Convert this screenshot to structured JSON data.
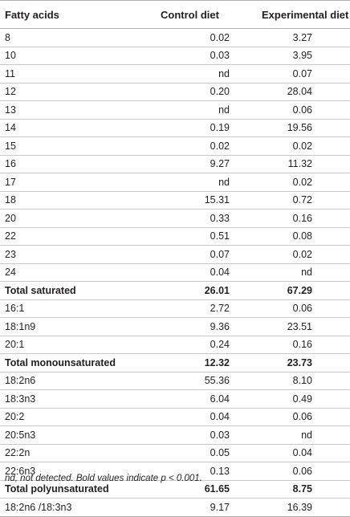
{
  "table": {
    "headers": [
      "Fatty acids",
      "Control diet",
      "Experimental diet"
    ],
    "rows": [
      {
        "label": "8",
        "control": "0.02",
        "experimental": "3.27",
        "bold": false
      },
      {
        "label": "10",
        "control": "0.03",
        "experimental": "3.95",
        "bold": false
      },
      {
        "label": "11",
        "control": "nd",
        "experimental": "0.07",
        "bold": false
      },
      {
        "label": "12",
        "control": "0.20",
        "experimental": "28.04",
        "bold": false
      },
      {
        "label": "13",
        "control": "nd",
        "experimental": "0.06",
        "bold": false
      },
      {
        "label": "14",
        "control": "0.19",
        "experimental": "19.56",
        "bold": false
      },
      {
        "label": "15",
        "control": "0.02",
        "experimental": "0.02",
        "bold": false
      },
      {
        "label": "16",
        "control": "9.27",
        "experimental": "11.32",
        "bold": false
      },
      {
        "label": "17",
        "control": "nd",
        "experimental": "0.02",
        "bold": false
      },
      {
        "label": "18",
        "control": "15.31",
        "experimental": "0.72",
        "bold": false
      },
      {
        "label": "20",
        "control": "0.33",
        "experimental": "0.16",
        "bold": false
      },
      {
        "label": "22",
        "control": "0.51",
        "experimental": "0.08",
        "bold": false
      },
      {
        "label": "23",
        "control": "0.07",
        "experimental": "0.02",
        "bold": false
      },
      {
        "label": "24",
        "control": "0.04",
        "experimental": "nd",
        "bold": false
      },
      {
        "label": "Total saturated",
        "control": "26.01",
        "experimental": "67.29",
        "bold": true
      },
      {
        "label": "16:1",
        "control": "2.72",
        "experimental": "0.06",
        "bold": false
      },
      {
        "label": "18:1n9",
        "control": "9.36",
        "experimental": "23.51",
        "bold": false
      },
      {
        "label": "20:1",
        "control": "0.24",
        "experimental": "0.16",
        "bold": false
      },
      {
        "label": "Total monounsaturated",
        "control": "12.32",
        "experimental": "23.73",
        "bold": true
      },
      {
        "label": "18:2n6",
        "control": "55.36",
        "experimental": "8.10",
        "bold": false
      },
      {
        "label": "18:3n3",
        "control": "6.04",
        "experimental": "0.49",
        "bold": false
      },
      {
        "label": "20:2",
        "control": "0.04",
        "experimental": "0.06",
        "bold": false
      },
      {
        "label": "20:5n3",
        "control": "0.03",
        "experimental": "nd",
        "bold": false
      },
      {
        "label": "22:2n",
        "control": "0.05",
        "experimental": "0.04",
        "bold": false
      },
      {
        "label": "22:6n3",
        "control": "0.13",
        "experimental": "0.06",
        "bold": false
      },
      {
        "label": "Total polyunsaturated",
        "control": "61.65",
        "experimental": "8.75",
        "bold": true
      },
      {
        "label": "18:2n6 /18:3n3",
        "control": "9.17",
        "experimental": "16.39",
        "bold": false
      }
    ]
  },
  "footnote": "nd, not detected. Bold values indicate p < 0.001."
}
